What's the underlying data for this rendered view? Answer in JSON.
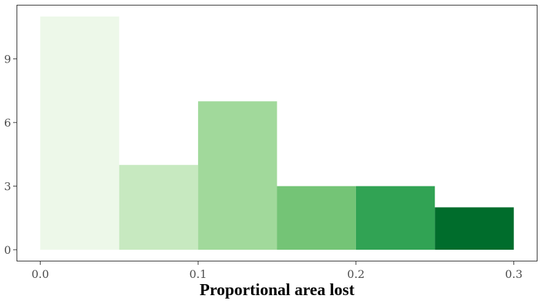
{
  "chart_data": {
    "type": "bar",
    "subtype": "histogram",
    "title": "",
    "xlabel": "Proportional area lost",
    "ylabel": "",
    "bins": [
      {
        "x0": 0.0,
        "x1": 0.05,
        "count": 11,
        "color": "#edf8e9"
      },
      {
        "x0": 0.05,
        "x1": 0.1,
        "count": 4,
        "color": "#c7e9c0"
      },
      {
        "x0": 0.1,
        "x1": 0.15,
        "count": 7,
        "color": "#a1d99b"
      },
      {
        "x0": 0.15,
        "x1": 0.2,
        "count": 3,
        "color": "#74c476"
      },
      {
        "x0": 0.2,
        "x1": 0.25,
        "count": 3,
        "color": "#31a354"
      },
      {
        "x0": 0.25,
        "x1": 0.3,
        "count": 2,
        "color": "#006d2c"
      }
    ],
    "xlim": [
      -0.015,
      0.315
    ],
    "ylim": [
      -0.55,
      11.55
    ],
    "xticks": [
      {
        "value": 0.0,
        "label": "0.0"
      },
      {
        "value": 0.1,
        "label": "0.1"
      },
      {
        "value": 0.2,
        "label": "0.2"
      },
      {
        "value": 0.3,
        "label": "0.3"
      }
    ],
    "yticks": [
      {
        "value": 0,
        "label": "0"
      },
      {
        "value": 3,
        "label": "3"
      },
      {
        "value": 6,
        "label": "6"
      },
      {
        "value": 9,
        "label": "9"
      }
    ],
    "grid": false,
    "legend": "none"
  }
}
